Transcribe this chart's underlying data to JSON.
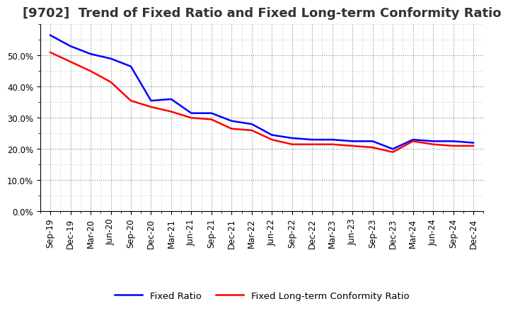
{
  "title": "[9702]  Trend of Fixed Ratio and Fixed Long-term Conformity Ratio",
  "x_labels": [
    "Sep-19",
    "Dec-19",
    "Mar-20",
    "Jun-20",
    "Sep-20",
    "Dec-20",
    "Mar-21",
    "Jun-21",
    "Sep-21",
    "Dec-21",
    "Mar-22",
    "Jun-22",
    "Sep-22",
    "Dec-22",
    "Mar-23",
    "Jun-23",
    "Sep-23",
    "Dec-23",
    "Mar-24",
    "Jun-24",
    "Sep-24",
    "Dec-24"
  ],
  "fixed_ratio": [
    0.565,
    0.53,
    0.505,
    0.49,
    0.465,
    0.355,
    0.36,
    0.315,
    0.315,
    0.29,
    0.28,
    0.245,
    0.235,
    0.23,
    0.23,
    0.225,
    0.225,
    0.2,
    0.23,
    0.225,
    0.225,
    0.22
  ],
  "fixed_lt_ratio": [
    0.51,
    0.48,
    0.45,
    0.415,
    0.355,
    0.335,
    0.32,
    0.3,
    0.295,
    0.265,
    0.26,
    0.23,
    0.215,
    0.215,
    0.215,
    0.21,
    0.205,
    0.19,
    0.225,
    0.215,
    0.21,
    0.21
  ],
  "line_color_blue": "#0000FF",
  "line_color_red": "#FF0000",
  "ylim": [
    0.0,
    0.6
  ],
  "yticks": [
    0.0,
    0.1,
    0.2,
    0.3,
    0.4,
    0.5
  ],
  "background_color": "#FFFFFF",
  "plot_bg_color": "#FFFFFF",
  "grid_color": "#888888",
  "minor_grid_color": "#BBBBBB",
  "legend_label_blue": "Fixed Ratio",
  "legend_label_red": "Fixed Long-term Conformity Ratio",
  "title_fontsize": 13,
  "axis_fontsize": 8.5,
  "legend_fontsize": 9.5,
  "line_width": 1.8
}
